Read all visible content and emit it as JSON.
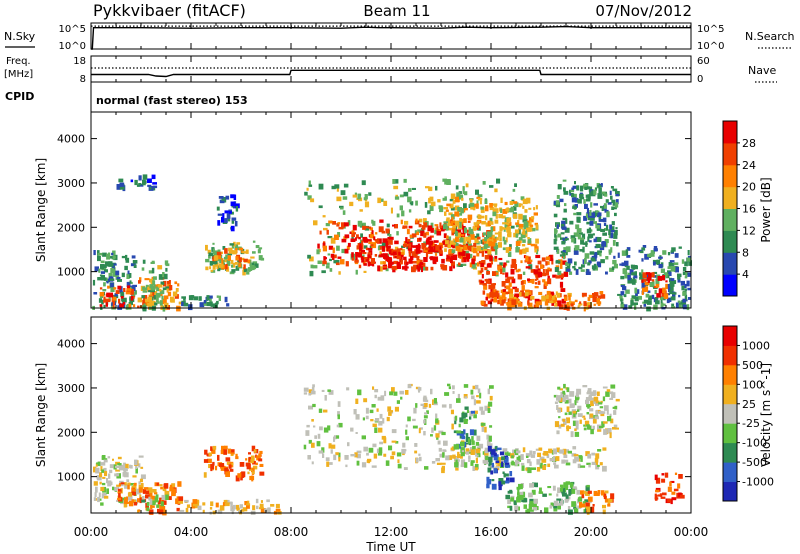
{
  "header": {
    "station": "Pykkvibaer (fitACF)",
    "beam": "Beam 11",
    "date": "07/Nov/2012"
  },
  "chart_data": [
    {
      "type": "line",
      "panel": "noise",
      "left_label": "N.Sky",
      "right_label": "N.Search",
      "left_ticks": [
        "10^5",
        "10^0"
      ],
      "right_ticks": [
        "10^5",
        "10^0"
      ],
      "x_range_hours": [
        0,
        24
      ],
      "series": [
        {
          "style": "solid",
          "x": [
            0,
            0.05,
            0.1,
            2,
            4,
            6,
            8,
            10,
            11,
            11.5,
            12,
            14,
            15,
            16,
            18,
            19,
            20,
            22,
            24
          ],
          "y": [
            0,
            0,
            4.1,
            4.1,
            4.0,
            4.1,
            4.1,
            4.0,
            4.2,
            4.1,
            4.1,
            4.0,
            4.2,
            4.1,
            4.2,
            4.3,
            4.1,
            4.1,
            4.1
          ]
        },
        {
          "style": "dotted",
          "x": [
            0,
            4,
            8,
            12,
            16,
            20,
            24
          ],
          "y": [
            4.4,
            4.4,
            4.4,
            4.4,
            4.4,
            4.4,
            4.4
          ]
        }
      ]
    },
    {
      "type": "line",
      "panel": "frequency",
      "left_label": "Freq.",
      "left_unit": "[MHz]",
      "right_label": "Nave",
      "left_ticks": [
        "18",
        "8"
      ],
      "right_ticks": [
        "60",
        "0"
      ],
      "cpid_label": "CPID",
      "cpid_text": "normal (fast stereo) 153",
      "x_range_hours": [
        0,
        24
      ],
      "series": [
        {
          "name_hint": "freq",
          "style": "solid",
          "x": [
            0,
            2.3,
            2.6,
            3.0,
            3.3,
            7.95,
            8.0,
            17.95,
            18.0,
            24
          ],
          "y": [
            10.9,
            10.9,
            10.3,
            10.1,
            10.9,
            10.9,
            12.5,
            12.5,
            10.9,
            10.9
          ]
        },
        {
          "name_hint": "nave",
          "style": "dotted",
          "x": [
            0,
            24
          ],
          "y": [
            13.4,
            13.4
          ]
        }
      ]
    },
    {
      "type": "heatmap",
      "panel": "power",
      "ylabel": "Slant Range [km]",
      "y_ticks": [
        "1000",
        "2000",
        "3000",
        "4000"
      ],
      "ylim": [
        180,
        4600
      ],
      "x_range_hours": [
        0,
        24
      ],
      "colorbar_label": "Power [dB]",
      "colorbar_ticks": [
        "28",
        "24",
        "20",
        "16",
        "12",
        "8",
        "4"
      ],
      "colorbar_colors": [
        "#0000ff",
        "#2848b0",
        "#2e8a52",
        "#60b060",
        "#f0b020",
        "#ff8000",
        "#f04000",
        "#e80000"
      ],
      "regions": [
        {
          "t0": 0.05,
          "t1": 1.8,
          "r0": 200,
          "r1": 1500,
          "level": 2
        },
        {
          "t0": 0.3,
          "t1": 1.8,
          "r0": 250,
          "r1": 700,
          "level": 6
        },
        {
          "t0": 1.8,
          "t1": 3.6,
          "r0": 200,
          "r1": 900,
          "level": 5
        },
        {
          "t0": 2.0,
          "t1": 3.0,
          "r0": 200,
          "r1": 1300,
          "level": 3
        },
        {
          "t0": 3.6,
          "t1": 5.5,
          "r0": 220,
          "r1": 500,
          "level": 2
        },
        {
          "t0": 4.5,
          "t1": 6.8,
          "r0": 1000,
          "r1": 1700,
          "level": 3
        },
        {
          "t0": 4.8,
          "t1": 6.4,
          "r0": 1150,
          "r1": 1550,
          "level": 5
        },
        {
          "t0": 8.5,
          "t1": 17.5,
          "r0": 1000,
          "r1": 3100,
          "level": 3
        },
        {
          "t0": 9.0,
          "t1": 16.0,
          "r0": 1200,
          "r1": 2200,
          "level": 6
        },
        {
          "t0": 10.5,
          "t1": 14.5,
          "r0": 1100,
          "r1": 1800,
          "level": 7
        },
        {
          "t0": 14.0,
          "t1": 17.8,
          "r0": 1500,
          "r1": 2700,
          "level": 4
        },
        {
          "t0": 15.5,
          "t1": 19.0,
          "r0": 250,
          "r1": 1400,
          "level": 6
        },
        {
          "t0": 16.0,
          "t1": 20.5,
          "r0": 200,
          "r1": 600,
          "level": 5
        },
        {
          "t0": 18.5,
          "t1": 21.0,
          "r0": 1000,
          "r1": 3100,
          "level": 2
        },
        {
          "t0": 21.0,
          "t1": 23.9,
          "r0": 200,
          "r1": 1600,
          "level": 2
        },
        {
          "t0": 22.0,
          "t1": 23.0,
          "r0": 500,
          "r1": 1000,
          "level": 6
        },
        {
          "t0": 1.0,
          "t1": 2.5,
          "r0": 2900,
          "r1": 3200,
          "level": 1
        },
        {
          "t0": 5.0,
          "t1": 5.8,
          "r0": 2000,
          "r1": 2800,
          "level": 1
        }
      ]
    },
    {
      "type": "heatmap",
      "panel": "velocity",
      "ylabel": "Slant Range [km]",
      "y_ticks": [
        "1000",
        "2000",
        "3000",
        "4000"
      ],
      "ylim": [
        180,
        4600
      ],
      "x_range_hours": [
        0,
        24
      ],
      "xlabel": "Time UT",
      "x_ticks": [
        "00:00",
        "04:00",
        "08:00",
        "12:00",
        "16:00",
        "20:00",
        "00:00"
      ],
      "colorbar_label": "Velocity [m s^-1]",
      "colorbar_ticks": [
        "1000",
        "500",
        "100",
        "25",
        "-25",
        "-100",
        "-500",
        "-1000"
      ],
      "colorbar_colors": [
        "#1e28b4",
        "#3060c8",
        "#2e8a52",
        "#60c040",
        "#c0c0b8",
        "#f0b020",
        "#ff8000",
        "#f03000",
        "#e80000"
      ],
      "regions": [
        {
          "t0": 0.05,
          "t1": 2.0,
          "r0": 400,
          "r1": 1500,
          "level": 4
        },
        {
          "t0": 1.0,
          "t1": 2.0,
          "r0": 400,
          "r1": 900,
          "level": 6
        },
        {
          "t0": 1.8,
          "t1": 3.5,
          "r0": 250,
          "r1": 900,
          "level": 6
        },
        {
          "t0": 2.0,
          "t1": 3.0,
          "r0": 300,
          "r1": 600,
          "level": 3
        },
        {
          "t0": 3.5,
          "t1": 7.5,
          "r0": 200,
          "r1": 500,
          "level": 5
        },
        {
          "t0": 4.5,
          "t1": 6.8,
          "r0": 1000,
          "r1": 1700,
          "level": 6
        },
        {
          "t0": 8.5,
          "t1": 16.0,
          "r0": 1200,
          "r1": 3100,
          "level": 4
        },
        {
          "t0": 14.0,
          "t1": 20.5,
          "r0": 1200,
          "r1": 1700,
          "level": 4
        },
        {
          "t0": 15.8,
          "t1": 16.8,
          "r0": 800,
          "r1": 1700,
          "level": 1
        },
        {
          "t0": 16.5,
          "t1": 20.0,
          "r0": 250,
          "r1": 900,
          "level": 3
        },
        {
          "t0": 18.5,
          "t1": 21.0,
          "r0": 2000,
          "r1": 3100,
          "level": 4
        },
        {
          "t0": 19.5,
          "t1": 21.0,
          "r0": 250,
          "r1": 700,
          "level": 6
        },
        {
          "t0": 22.5,
          "t1": 23.6,
          "r0": 500,
          "r1": 1100,
          "level": 7
        },
        {
          "t0": 14.5,
          "t1": 15.3,
          "r0": 1700,
          "r1": 2600,
          "level": 2
        }
      ]
    }
  ]
}
